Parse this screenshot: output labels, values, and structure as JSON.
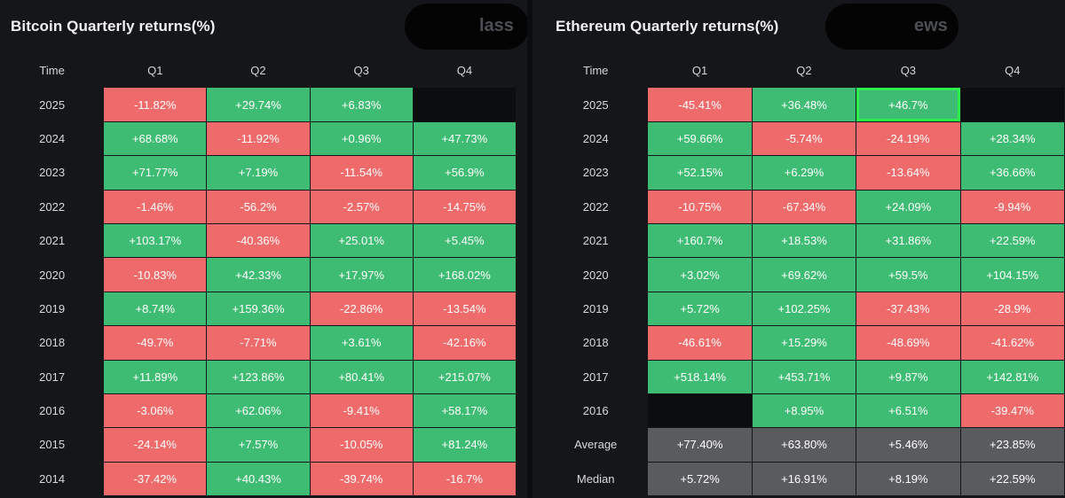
{
  "colors": {
    "positive": "#3fbc73",
    "negative": "#ef6b6b",
    "stat": "#5a5b5e",
    "highlight": "#2cf24b"
  },
  "chart_data": [
    {
      "type": "table",
      "title": "Bitcoin Quarterly returns(%)",
      "watermark": "lass",
      "columns": [
        "Time",
        "Q1",
        "Q2",
        "Q3",
        "Q4"
      ],
      "rows": [
        {
          "label": "2025",
          "cells": [
            "-11.82%",
            "+29.74%",
            "+6.83%",
            "-"
          ]
        },
        {
          "label": "2024",
          "cells": [
            "+68.68%",
            "-11.92%",
            "+0.96%",
            "+47.73%"
          ]
        },
        {
          "label": "2023",
          "cells": [
            "+71.77%",
            "+7.19%",
            "-11.54%",
            "+56.9%"
          ]
        },
        {
          "label": "2022",
          "cells": [
            "-1.46%",
            "-56.2%",
            "-2.57%",
            "-14.75%"
          ]
        },
        {
          "label": "2021",
          "cells": [
            "+103.17%",
            "-40.36%",
            "+25.01%",
            "+5.45%"
          ]
        },
        {
          "label": "2020",
          "cells": [
            "-10.83%",
            "+42.33%",
            "+17.97%",
            "+168.02%"
          ]
        },
        {
          "label": "2019",
          "cells": [
            "+8.74%",
            "+159.36%",
            "-22.86%",
            "-13.54%"
          ]
        },
        {
          "label": "2018",
          "cells": [
            "-49.7%",
            "-7.71%",
            "+3.61%",
            "-42.16%"
          ]
        },
        {
          "label": "2017",
          "cells": [
            "+11.89%",
            "+123.86%",
            "+80.41%",
            "+215.07%"
          ]
        },
        {
          "label": "2016",
          "cells": [
            "-3.06%",
            "+62.06%",
            "-9.41%",
            "+58.17%"
          ]
        },
        {
          "label": "2015",
          "cells": [
            "-24.14%",
            "+7.57%",
            "-10.05%",
            "+81.24%"
          ]
        },
        {
          "label": "2014",
          "cells": [
            "-37.42%",
            "+40.43%",
            "-39.74%",
            "-16.7%"
          ]
        }
      ]
    },
    {
      "type": "table",
      "title": "Ethereum Quarterly returns(%)",
      "watermark": "ews",
      "columns": [
        "Time",
        "Q1",
        "Q2",
        "Q3",
        "Q4"
      ],
      "highlighted": {
        "row": "2025",
        "column": "Q3"
      },
      "rows": [
        {
          "label": "2025",
          "cells": [
            "-45.41%",
            "+36.48%",
            "+46.7%",
            "-"
          ]
        },
        {
          "label": "2024",
          "cells": [
            "+59.66%",
            "-5.74%",
            "-24.19%",
            "+28.34%"
          ]
        },
        {
          "label": "2023",
          "cells": [
            "+52.15%",
            "+6.29%",
            "-13.64%",
            "+36.66%"
          ]
        },
        {
          "label": "2022",
          "cells": [
            "-10.75%",
            "-67.34%",
            "+24.09%",
            "-9.94%"
          ]
        },
        {
          "label": "2021",
          "cells": [
            "+160.7%",
            "+18.53%",
            "+31.86%",
            "+22.59%"
          ]
        },
        {
          "label": "2020",
          "cells": [
            "+3.02%",
            "+69.62%",
            "+59.5%",
            "+104.15%"
          ]
        },
        {
          "label": "2019",
          "cells": [
            "+5.72%",
            "+102.25%",
            "-37.43%",
            "-28.9%"
          ]
        },
        {
          "label": "2018",
          "cells": [
            "-46.61%",
            "+15.29%",
            "-48.69%",
            "-41.62%"
          ]
        },
        {
          "label": "2017",
          "cells": [
            "+518.14%",
            "+453.71%",
            "+9.87%",
            "+142.81%"
          ]
        },
        {
          "label": "2016",
          "cells": [
            "-",
            "+8.95%",
            "+6.51%",
            "-39.47%"
          ]
        },
        {
          "label": "Average",
          "stat": true,
          "cells": [
            "+77.40%",
            "+63.80%",
            "+5.46%",
            "+23.85%"
          ]
        },
        {
          "label": "Median",
          "stat": true,
          "cells": [
            "+5.72%",
            "+16.91%",
            "+8.19%",
            "+22.59%"
          ]
        }
      ]
    }
  ]
}
